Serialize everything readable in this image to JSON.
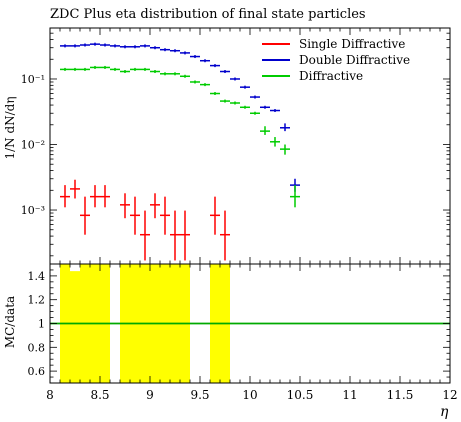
{
  "chart_data": {
    "type": "scatter",
    "title": "ZDC Plus eta distribution of final state particles",
    "xlabel": "η",
    "ylabel_top": "1/N dN/dη",
    "ylabel_bottom": "MC/data",
    "xlim": [
      8,
      12
    ],
    "ylim_top_log": [
      0.00015,
      0.6
    ],
    "ylim_bottom": [
      0.5,
      1.5
    ],
    "x_ticks": [
      "8",
      "8.5",
      "9",
      "9.5",
      "10",
      "10.5",
      "11",
      "11.5",
      "12"
    ],
    "y_ticks_top": [
      "10⁻³",
      "10⁻²",
      "10⁻¹"
    ],
    "y_ticks_bottom": [
      "0.6",
      "0.8",
      "1",
      "1.2",
      "1.4"
    ],
    "legend_placement": "top-right",
    "series": [
      {
        "name": "Single Diffractive",
        "color": "#ff0000",
        "points": [
          {
            "x": 8.15,
            "y": 0.0016,
            "ylo": 0.0011,
            "yhi": 0.0024
          },
          {
            "x": 8.25,
            "y": 0.0021,
            "ylo": 0.0015,
            "yhi": 0.0029
          },
          {
            "x": 8.35,
            "y": 0.00083,
            "ylo": 0.00042,
            "yhi": 0.0016
          },
          {
            "x": 8.45,
            "y": 0.0016,
            "ylo": 0.0011,
            "yhi": 0.0024
          },
          {
            "x": 8.55,
            "y": 0.0016,
            "ylo": 0.0011,
            "yhi": 0.0024
          },
          {
            "x": 8.75,
            "y": 0.0012,
            "ylo": 0.00075,
            "yhi": 0.0018
          },
          {
            "x": 8.85,
            "y": 0.00083,
            "ylo": 0.00042,
            "yhi": 0.0016
          },
          {
            "x": 8.95,
            "y": 0.00042,
            "ylo": 0.00017,
            "yhi": 0.00098
          },
          {
            "x": 9.05,
            "y": 0.0012,
            "ylo": 0.00075,
            "yhi": 0.0018
          },
          {
            "x": 9.15,
            "y": 0.00083,
            "ylo": 0.00042,
            "yhi": 0.0016
          },
          {
            "x": 9.25,
            "y": 0.00042,
            "ylo": 0.00017,
            "yhi": 0.00098
          },
          {
            "x": 9.35,
            "y": 0.00042,
            "ylo": 0.00017,
            "yhi": 0.00098
          },
          {
            "x": 9.65,
            "y": 0.00083,
            "ylo": 0.00042,
            "yhi": 0.0016
          },
          {
            "x": 9.75,
            "y": 0.00042,
            "ylo": 0.00017,
            "yhi": 0.00098
          }
        ]
      },
      {
        "name": "Double Diffractive",
        "color": "#0000cc",
        "points": [
          {
            "x": 8.15,
            "y": 0.32
          },
          {
            "x": 8.25,
            "y": 0.32
          },
          {
            "x": 8.35,
            "y": 0.33
          },
          {
            "x": 8.45,
            "y": 0.34
          },
          {
            "x": 8.55,
            "y": 0.33
          },
          {
            "x": 8.65,
            "y": 0.32
          },
          {
            "x": 8.75,
            "y": 0.31
          },
          {
            "x": 8.85,
            "y": 0.31
          },
          {
            "x": 8.95,
            "y": 0.32
          },
          {
            "x": 9.05,
            "y": 0.3
          },
          {
            "x": 9.15,
            "y": 0.28
          },
          {
            "x": 9.25,
            "y": 0.27
          },
          {
            "x": 9.35,
            "y": 0.25
          },
          {
            "x": 9.45,
            "y": 0.22
          },
          {
            "x": 9.55,
            "y": 0.19
          },
          {
            "x": 9.65,
            "y": 0.16
          },
          {
            "x": 9.75,
            "y": 0.13
          },
          {
            "x": 9.85,
            "y": 0.1
          },
          {
            "x": 9.95,
            "y": 0.075
          },
          {
            "x": 10.05,
            "y": 0.053
          },
          {
            "x": 10.15,
            "y": 0.037
          },
          {
            "x": 10.25,
            "y": 0.033
          },
          {
            "x": 10.35,
            "y": 0.018,
            "ylo": 0.016,
            "yhi": 0.021
          },
          {
            "x": 10.45,
            "y": 0.0024,
            "ylo": 0.0019,
            "yhi": 0.003
          }
        ]
      },
      {
        "name": "Diffractive",
        "color": "#00cc00",
        "points": [
          {
            "x": 8.15,
            "y": 0.14
          },
          {
            "x": 8.25,
            "y": 0.14
          },
          {
            "x": 8.35,
            "y": 0.14
          },
          {
            "x": 8.45,
            "y": 0.15
          },
          {
            "x": 8.55,
            "y": 0.15
          },
          {
            "x": 8.65,
            "y": 0.14
          },
          {
            "x": 8.75,
            "y": 0.13
          },
          {
            "x": 8.85,
            "y": 0.14
          },
          {
            "x": 8.95,
            "y": 0.14
          },
          {
            "x": 9.05,
            "y": 0.13
          },
          {
            "x": 9.15,
            "y": 0.12
          },
          {
            "x": 9.25,
            "y": 0.12
          },
          {
            "x": 9.35,
            "y": 0.11
          },
          {
            "x": 9.45,
            "y": 0.09
          },
          {
            "x": 9.55,
            "y": 0.082
          },
          {
            "x": 9.65,
            "y": 0.06
          },
          {
            "x": 9.75,
            "y": 0.046
          },
          {
            "x": 9.85,
            "y": 0.043
          },
          {
            "x": 9.95,
            "y": 0.037
          },
          {
            "x": 10.05,
            "y": 0.03
          },
          {
            "x": 10.15,
            "y": 0.016,
            "ylo": 0.014,
            "yhi": 0.019
          },
          {
            "x": 10.25,
            "y": 0.011,
            "ylo": 0.0093,
            "yhi": 0.013
          },
          {
            "x": 10.35,
            "y": 0.0085,
            "ylo": 0.007,
            "yhi": 0.01
          },
          {
            "x": 10.45,
            "y": 0.0016,
            "ylo": 0.0011,
            "yhi": 0.0024
          }
        ]
      }
    ],
    "ratio_band": {
      "color": "#ffff00",
      "bins": [
        {
          "x0": 8.1,
          "x1": 8.2,
          "lo": 0.5,
          "hi": 1.5
        },
        {
          "x0": 8.2,
          "x1": 8.3,
          "lo": 0.5,
          "hi": 1.44
        },
        {
          "x0": 8.3,
          "x1": 8.6,
          "lo": 0.5,
          "hi": 1.5
        },
        {
          "x0": 8.7,
          "x1": 9.4,
          "lo": 0.5,
          "hi": 1.5
        },
        {
          "x0": 9.6,
          "x1": 9.8,
          "lo": 0.5,
          "hi": 1.5
        }
      ]
    },
    "ratio_line": {
      "y": 1,
      "color": "#00aa00"
    }
  }
}
